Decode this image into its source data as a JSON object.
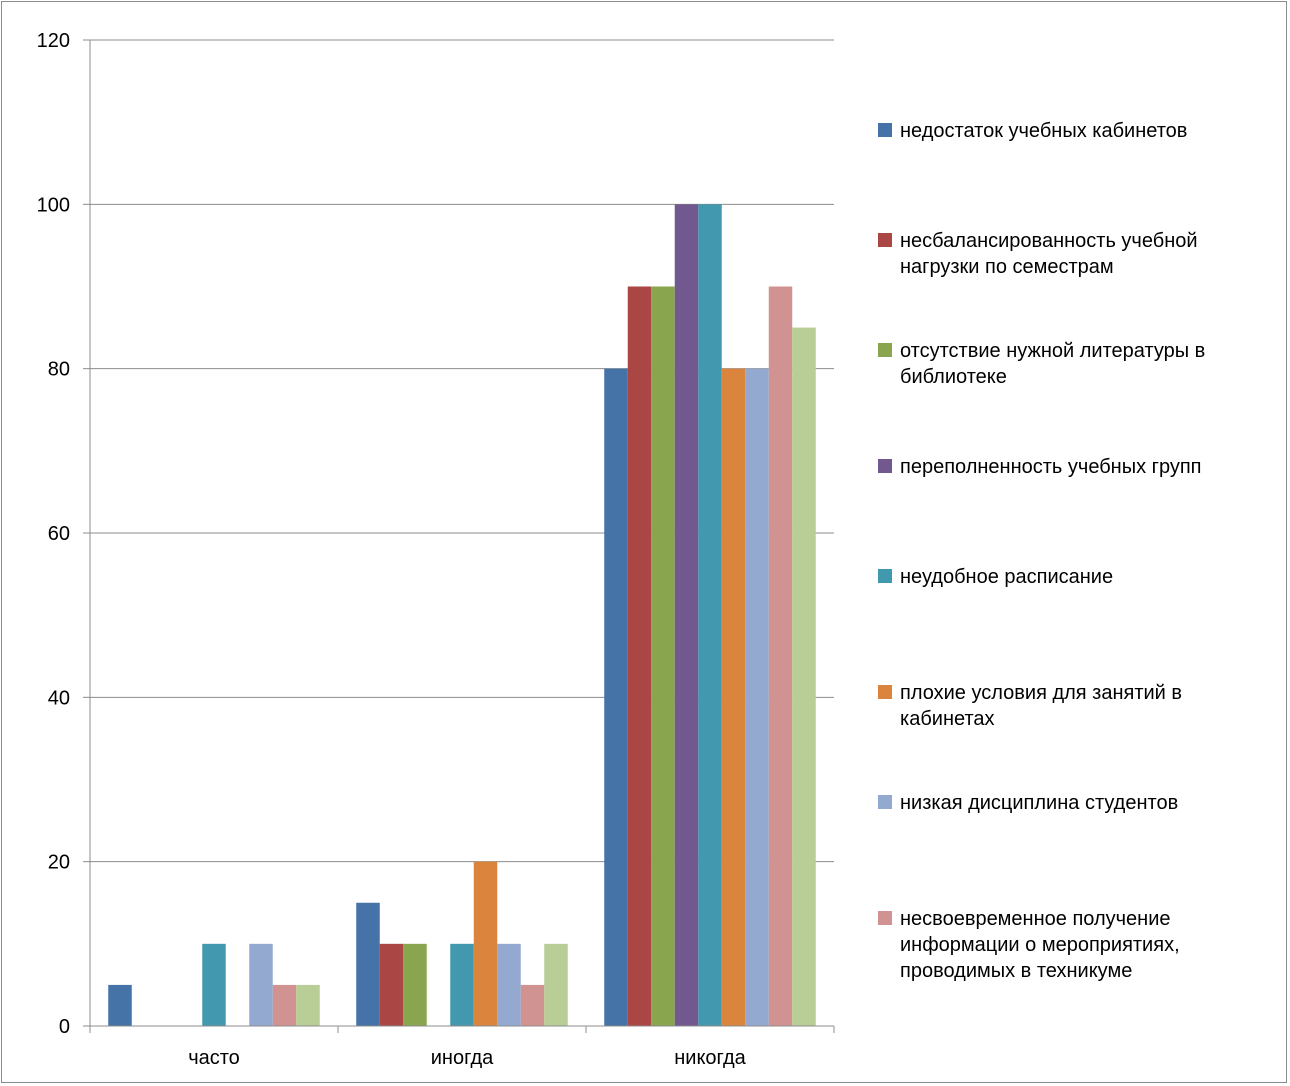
{
  "chart_data": {
    "type": "bar",
    "categories": [
      "часто",
      "иногда",
      "никогда"
    ],
    "ylim": [
      0,
      120
    ],
    "yticks": [
      0,
      20,
      40,
      60,
      80,
      100,
      120
    ],
    "grid": true,
    "legend_position": "right",
    "series": [
      {
        "name": "недостаток учебных кабинетов",
        "color": "#4572a7",
        "values": [
          5,
          15,
          80
        ]
      },
      {
        "name": "несбалансированность учебной нагрузки по семестрам",
        "color": "#aa4643",
        "values": [
          0,
          10,
          90
        ]
      },
      {
        "name": "отсутствие нужной литературы в библиотеке",
        "color": "#89a54e",
        "values": [
          0,
          10,
          90
        ]
      },
      {
        "name": "переполненность учебных групп",
        "color": "#71588f",
        "values": [
          0,
          0,
          100
        ]
      },
      {
        "name": "неудобное расписание",
        "color": "#4198af",
        "values": [
          10,
          10,
          100
        ]
      },
      {
        "name": "плохие условия для занятий в кабинетах",
        "color": "#db843d",
        "values": [
          0,
          20,
          80
        ]
      },
      {
        "name": "низкая дисциплина студентов",
        "color": "#93a9cf",
        "values": [
          10,
          10,
          80
        ]
      },
      {
        "name": "несвоевременное получение информации о мероприятиях, проводимых в техникуме",
        "color": "#d19392",
        "values": [
          5,
          5,
          90
        ]
      },
      {
        "name": "",
        "color": "#b9cd96",
        "values": [
          5,
          10,
          85
        ]
      }
    ]
  }
}
